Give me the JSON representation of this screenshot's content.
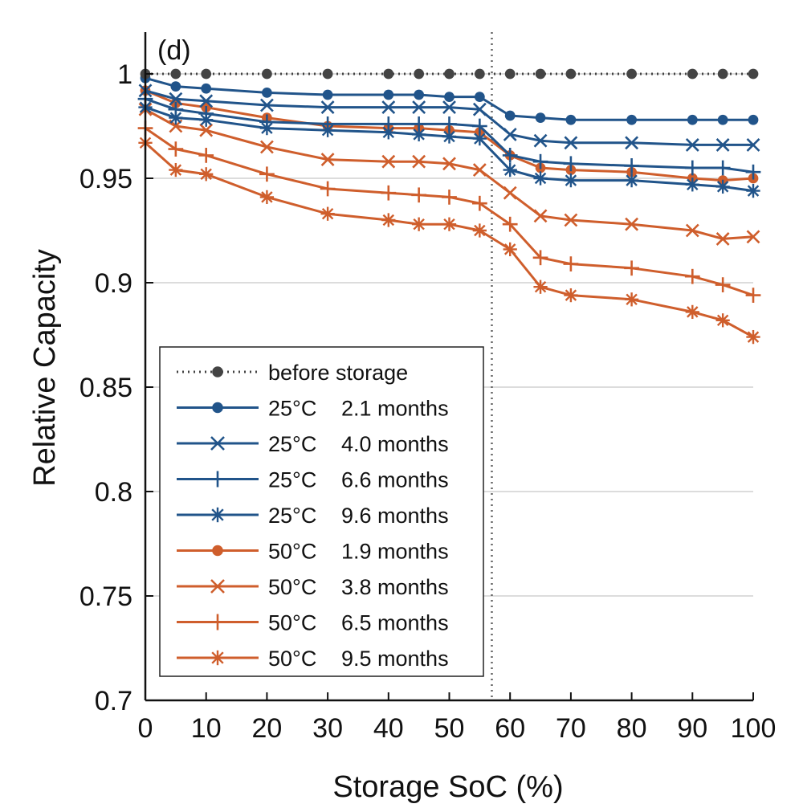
{
  "chart_data": {
    "type": "line",
    "panel_label": "(d)",
    "xlabel": "Storage SoC (%)",
    "ylabel": "Relative Capacity",
    "xlim": [
      0,
      100
    ],
    "ylim": [
      0.7,
      1.02
    ],
    "x_ticks": [
      0,
      10,
      20,
      30,
      40,
      50,
      60,
      70,
      80,
      90,
      100
    ],
    "x_tick_labels": [
      "0",
      "10",
      "20",
      "30",
      "40",
      "50",
      "60",
      "70",
      "80",
      "90",
      "100"
    ],
    "y_ticks": [
      0.7,
      0.75,
      0.8,
      0.85,
      0.9,
      0.95,
      1.0
    ],
    "y_tick_labels": [
      "0.7",
      "0.75",
      "0.8",
      "0.85",
      "0.9",
      "0.95",
      "1"
    ],
    "grid": "horizontal",
    "legend_position": "bottom-left",
    "reference_line": {
      "x": 57,
      "style": "dotted"
    },
    "colors": {
      "blue": "#21548a",
      "orange": "#cf5e2c",
      "gray": "#444444"
    },
    "series": [
      {
        "name": "before storage",
        "temp": "",
        "duration": "before storage",
        "color": "#444444",
        "marker": "dot",
        "line": "dotted",
        "x": [
          0,
          5,
          10,
          20,
          30,
          40,
          45,
          50,
          55,
          60,
          65,
          70,
          80,
          90,
          95,
          100
        ],
        "values": [
          1.0,
          1.0,
          1.0,
          1.0,
          1.0,
          1.0,
          1.0,
          1.0,
          1.0,
          1.0,
          1.0,
          1.0,
          1.0,
          1.0,
          1.0,
          1.0
        ]
      },
      {
        "name": "25°C 2.1 months",
        "temp": "25°C",
        "duration": "2.1 months",
        "color": "#21548a",
        "marker": "dot",
        "line": "solid",
        "x": [
          0,
          5,
          10,
          20,
          30,
          40,
          45,
          50,
          55,
          60,
          65,
          70,
          80,
          90,
          95,
          100
        ],
        "values": [
          0.998,
          0.994,
          0.993,
          0.991,
          0.99,
          0.99,
          0.99,
          0.989,
          0.989,
          0.98,
          0.979,
          0.978,
          0.978,
          0.978,
          0.978,
          0.978
        ]
      },
      {
        "name": "25°C 4.0 months",
        "temp": "25°C",
        "duration": "4.0 months",
        "color": "#21548a",
        "marker": "x",
        "line": "solid",
        "x": [
          0,
          5,
          10,
          20,
          30,
          40,
          45,
          50,
          55,
          60,
          65,
          70,
          80,
          90,
          95,
          100
        ],
        "values": [
          0.992,
          0.988,
          0.987,
          0.985,
          0.984,
          0.984,
          0.984,
          0.984,
          0.983,
          0.971,
          0.968,
          0.967,
          0.967,
          0.966,
          0.966,
          0.966
        ]
      },
      {
        "name": "25°C 6.6 months",
        "temp": "25°C",
        "duration": "6.6 months",
        "color": "#21548a",
        "marker": "plus",
        "line": "solid",
        "x": [
          0,
          5,
          10,
          20,
          30,
          40,
          45,
          50,
          55,
          60,
          65,
          70,
          80,
          90,
          95,
          100
        ],
        "values": [
          0.988,
          0.983,
          0.981,
          0.977,
          0.976,
          0.976,
          0.976,
          0.976,
          0.975,
          0.961,
          0.958,
          0.957,
          0.956,
          0.955,
          0.955,
          0.953
        ]
      },
      {
        "name": "25°C 9.6 months",
        "temp": "25°C",
        "duration": "9.6 months",
        "color": "#21548a",
        "marker": "star",
        "line": "solid",
        "x": [
          0,
          5,
          10,
          20,
          30,
          40,
          45,
          50,
          55,
          60,
          65,
          70,
          80,
          90,
          95,
          100
        ],
        "values": [
          0.984,
          0.979,
          0.978,
          0.974,
          0.973,
          0.972,
          0.971,
          0.97,
          0.969,
          0.954,
          0.95,
          0.949,
          0.949,
          0.947,
          0.946,
          0.944
        ]
      },
      {
        "name": "50°C 1.9 months",
        "temp": "50°C",
        "duration": "1.9 months",
        "color": "#cf5e2c",
        "marker": "dot",
        "line": "solid",
        "x": [
          0,
          5,
          10,
          20,
          30,
          40,
          45,
          50,
          55,
          60,
          65,
          70,
          80,
          90,
          95,
          100
        ],
        "values": [
          0.992,
          0.986,
          0.984,
          0.979,
          0.975,
          0.974,
          0.974,
          0.973,
          0.972,
          0.961,
          0.955,
          0.954,
          0.953,
          0.95,
          0.949,
          0.95
        ]
      },
      {
        "name": "50°C 3.8 months",
        "temp": "50°C",
        "duration": "3.8 months",
        "color": "#cf5e2c",
        "marker": "x",
        "line": "solid",
        "x": [
          0,
          5,
          10,
          20,
          30,
          40,
          45,
          50,
          55,
          60,
          65,
          70,
          80,
          90,
          95,
          100
        ],
        "values": [
          0.983,
          0.975,
          0.973,
          0.965,
          0.959,
          0.958,
          0.958,
          0.957,
          0.954,
          0.943,
          0.932,
          0.93,
          0.928,
          0.925,
          0.921,
          0.922
        ]
      },
      {
        "name": "50°C 6.5 months",
        "temp": "50°C",
        "duration": "6.5 months",
        "color": "#cf5e2c",
        "marker": "plus",
        "line": "solid",
        "x": [
          0,
          5,
          10,
          20,
          30,
          40,
          45,
          50,
          55,
          60,
          65,
          70,
          80,
          90,
          95,
          100
        ],
        "values": [
          0.974,
          0.964,
          0.961,
          0.952,
          0.945,
          0.943,
          0.942,
          0.941,
          0.938,
          0.928,
          0.912,
          0.909,
          0.907,
          0.903,
          0.899,
          0.894
        ]
      },
      {
        "name": "50°C 9.5 months",
        "temp": "50°C",
        "duration": "9.5 months",
        "color": "#cf5e2c",
        "marker": "star",
        "line": "solid",
        "x": [
          0,
          5,
          10,
          20,
          30,
          40,
          45,
          50,
          55,
          60,
          65,
          70,
          80,
          90,
          95,
          100
        ],
        "values": [
          0.967,
          0.954,
          0.952,
          0.941,
          0.933,
          0.93,
          0.928,
          0.928,
          0.925,
          0.916,
          0.898,
          0.894,
          0.892,
          0.886,
          0.882,
          0.874
        ]
      }
    ]
  }
}
